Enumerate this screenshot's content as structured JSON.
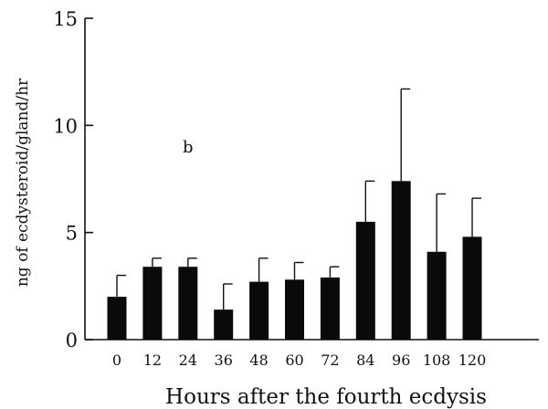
{
  "chart_data": {
    "type": "bar",
    "panel_label": "b",
    "xlabel": "Hours after the fourth ecdysis",
    "ylabel": "ng of ecdysteroid/gland/hr",
    "ylim": [
      0,
      15
    ],
    "yticks": [
      0,
      5,
      10,
      15
    ],
    "categories": [
      "0",
      "12",
      "24",
      "36",
      "48",
      "60",
      "72",
      "84",
      "96",
      "108",
      "120"
    ],
    "values": [
      2.0,
      3.4,
      3.4,
      1.4,
      2.7,
      2.8,
      2.9,
      5.5,
      7.4,
      4.1,
      4.8
    ],
    "errors": [
      1.0,
      0.4,
      0.4,
      1.2,
      1.1,
      0.8,
      0.5,
      1.9,
      4.3,
      2.7,
      1.8
    ],
    "grid": false,
    "colors": {
      "bar": "#0a0a0a",
      "axis": "#111111"
    }
  }
}
